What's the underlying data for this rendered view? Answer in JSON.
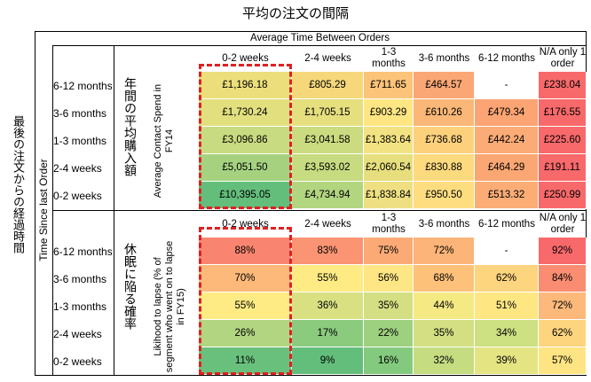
{
  "title": "平均の注文の間隔",
  "left_label": "最後の注文からの経過時間",
  "time_since_label": "Time Since last Order",
  "top_header": "Average Time Between Orders",
  "colors": {
    "highlight": "#e02020",
    "good": "#63be7b",
    "mid": "#ffeb84",
    "bad": "#f8696b"
  },
  "chart_data": [
    {
      "type": "heatmap",
      "ja_label": "年間の平均購入額",
      "en_label": "Average Contact Spend in FY14",
      "columns": [
        "0-2 weeks",
        "2-4 weeks",
        "1-3 months",
        "3-6 months",
        "6-12 months",
        "N/A only 1 order"
      ],
      "rows": [
        "6-12 months",
        "3-6 months",
        "1-3 months",
        "2-4 weeks",
        "0-2 weeks"
      ],
      "cells": [
        [
          "£1,196.18",
          "£805.29",
          "£711.65",
          "£464.57",
          "-",
          "£238.04"
        ],
        [
          "£1,730.24",
          "£1,705.15",
          "£903.29",
          "£610.26",
          "£479.34",
          "£176.55"
        ],
        [
          "£3,096.86",
          "£3,041.58",
          "£1,383.64",
          "£736.68",
          "£442.24",
          "£225.60"
        ],
        [
          "£5,051.50",
          "£3,593.02",
          "£2,060.54",
          "£830.88",
          "£464.29",
          "£191.11"
        ],
        [
          "£10,395.05",
          "£4,734.94",
          "£1,838.84",
          "£950.50",
          "£513.32",
          "£250.99"
        ]
      ],
      "colors": [
        [
          "#ecdf7b",
          "#f6d87a",
          "#fbc478",
          "#fba775",
          "#ffffff",
          "#f8696b"
        ],
        [
          "#e2df7f",
          "#e5df7e",
          "#ffe683",
          "#fbb777",
          "#fca473",
          "#f8696b"
        ],
        [
          "#c9db80",
          "#cbdb80",
          "#f3e282",
          "#fdd17c",
          "#fbab76",
          "#f8696b"
        ],
        [
          "#a6d280",
          "#c7db80",
          "#e7df7e",
          "#feda7e",
          "#fba773",
          "#f8696b"
        ],
        [
          "#63be7b",
          "#b2d580",
          "#eee082",
          "#fedd80",
          "#fbad75",
          "#f8696b"
        ]
      ],
      "highlight_column": 0
    },
    {
      "type": "heatmap",
      "ja_label": "休眠に陥る確率",
      "en_label": "Likihood to lapse (% of segment who went on to lapse in FY15)",
      "columns": [
        "0-2 weeks",
        "2-4 weeks",
        "1-3 months",
        "3-6 months",
        "6-12 months",
        "N/A only 1 order"
      ],
      "rows": [
        "6-12 months",
        "3-6 months",
        "1-3 months",
        "2-4 weeks",
        "0-2 weeks"
      ],
      "cells": [
        [
          "88%",
          "83%",
          "75%",
          "72%",
          "-",
          "92%"
        ],
        [
          "70%",
          "55%",
          "56%",
          "68%",
          "62%",
          "84%"
        ],
        [
          "55%",
          "36%",
          "35%",
          "44%",
          "51%",
          "72%"
        ],
        [
          "26%",
          "17%",
          "22%",
          "35%",
          "34%",
          "62%"
        ],
        [
          "11%",
          "9%",
          "16%",
          "32%",
          "39%",
          "57%"
        ]
      ],
      "colors": [
        [
          "#f98570",
          "#fa9472",
          "#fbaa76",
          "#fcb478",
          "#ffffff",
          "#f8696b"
        ],
        [
          "#fcb97a",
          "#ffeb84",
          "#fde683",
          "#fec17a",
          "#fed57f",
          "#fa8d71"
        ],
        [
          "#ffeb84",
          "#d9e082",
          "#d3df82",
          "#f4e983",
          "#fee683",
          "#fcb97a"
        ],
        [
          "#b1d580",
          "#8acb7e",
          "#9dd07f",
          "#d3df82",
          "#cde082",
          "#fed57f"
        ],
        [
          "#69c07c",
          "#63be7b",
          "#84ca7e",
          "#c5dc81",
          "#e4e483",
          "#ffe483"
        ]
      ],
      "highlight_column": 0
    }
  ]
}
